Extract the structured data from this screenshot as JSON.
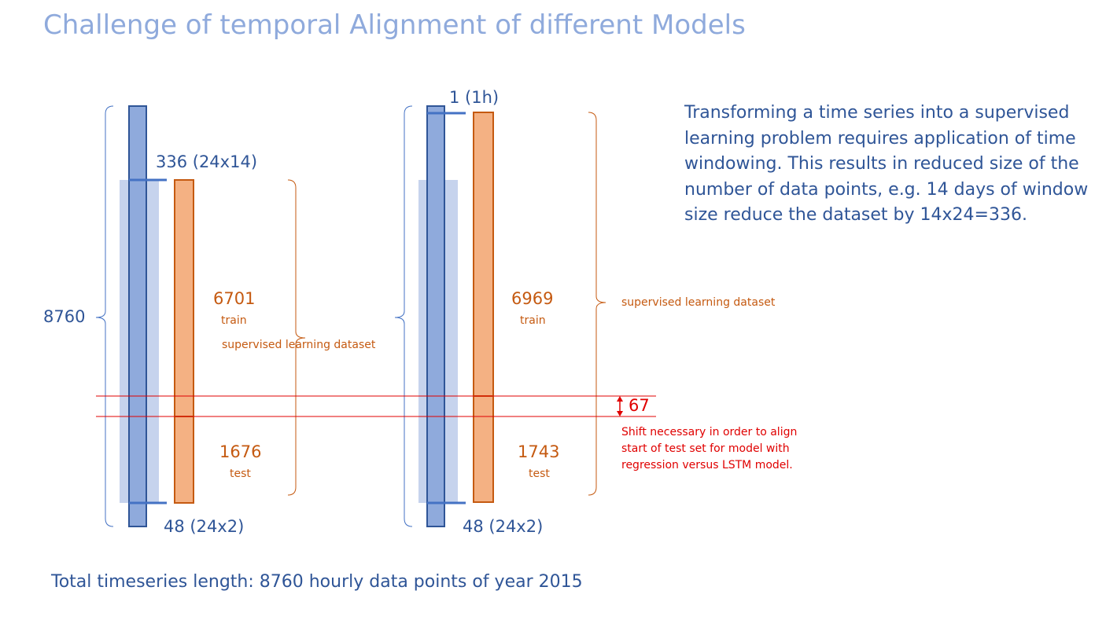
{
  "slide": {
    "title": "Challenge of temporal Alignment of different Models",
    "description": "Transforming a time series into a supervised learning problem requires application of time windowing. This results in reduced size of the number of data points, e.g. 14 days of window size reduce the dataset by 14x24=336.",
    "footer": "Total timeseries length: 8760 hourly data points of year 2015"
  },
  "left_model": {
    "total_label": "8760",
    "window_label": "336 (24x14)",
    "bottom_label": "48 (24x2)",
    "train_value": "6701",
    "train_label": "train",
    "test_value": "1676",
    "test_label": "test",
    "dataset_label": "supervised learning dataset"
  },
  "right_model": {
    "window_label": "1 (1h)",
    "bottom_label": "48 (24x2)",
    "train_value": "6969",
    "train_label": "train",
    "test_value": "1743",
    "test_label": "test",
    "dataset_label": "supervised learning dataset"
  },
  "shift": {
    "value": "67",
    "note_lines": [
      "Shift necessary in order to align",
      "start of test set for model with",
      "regression versus LSTM model."
    ]
  },
  "colors": {
    "title": "#8faadc",
    "blue_dark": "#2f5597",
    "blue_fill": "#8faadc",
    "blue_light": "#c6d3ed",
    "orange_fill": "#f4b183",
    "orange_stroke": "#c55a11",
    "red": "#e00000"
  }
}
